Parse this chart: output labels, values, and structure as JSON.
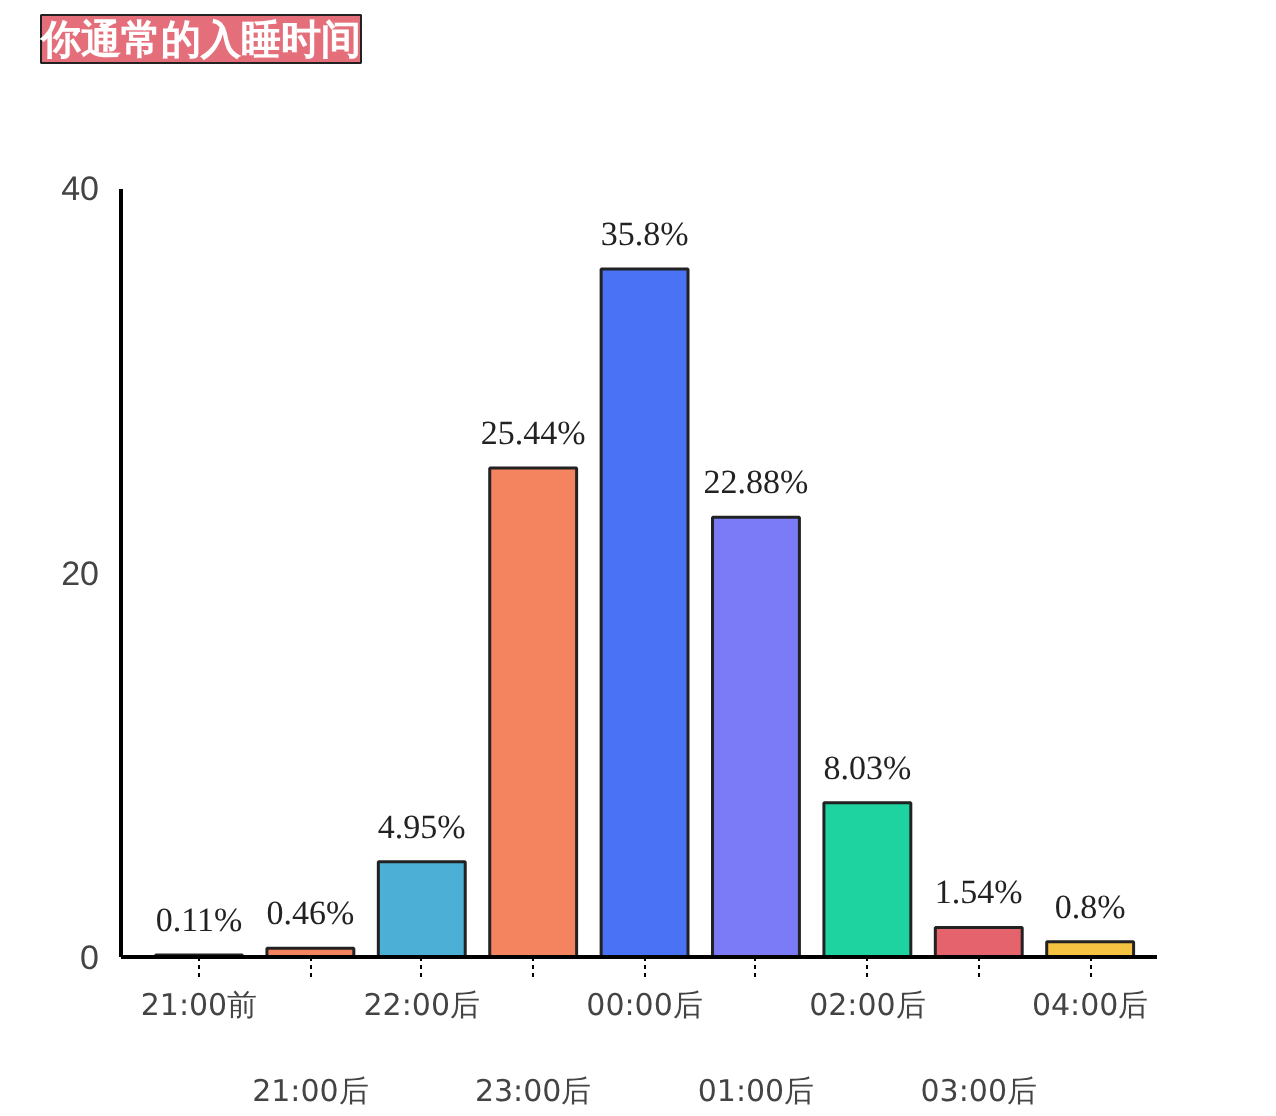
{
  "chart_data": {
    "type": "bar",
    "title": "你通常的入睡时间",
    "categories": [
      "21:00前",
      "21:00后",
      "22:00后",
      "23:00后",
      "00:00后",
      "01:00后",
      "02:00后",
      "03:00后",
      "04:00后"
    ],
    "values": [
      0.11,
      0.46,
      4.95,
      25.44,
      35.8,
      22.88,
      8.03,
      1.54,
      0.8
    ],
    "value_labels": [
      "0.11%",
      "0.46%",
      "4.95%",
      "25.44%",
      "35.8%",
      "22.88%",
      "8.03%",
      "1.54%",
      "0.8%"
    ],
    "colors": [
      "#333333",
      "#f4845f",
      "#4bafd6",
      "#f4845f",
      "#4a72f5",
      "#7b7bf7",
      "#1fd3a0",
      "#e5636d",
      "#f5c242"
    ],
    "ylim": [
      0,
      40
    ],
    "yticks": [
      0,
      20,
      40
    ],
    "grid": false
  }
}
